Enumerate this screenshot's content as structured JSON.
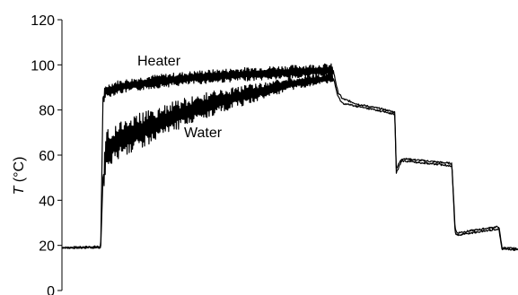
{
  "chart_data": {
    "type": "line",
    "title": "",
    "xlabel": "",
    "ylabel": {
      "var": "T",
      "unit": " (°C)"
    },
    "x_range": [
      0,
      100
    ],
    "ylim": [
      0,
      120
    ],
    "yticks": [
      0,
      20,
      40,
      60,
      80,
      100,
      120
    ],
    "grid": false,
    "legend": "none",
    "series": [
      {
        "name": "Heater",
        "color": "#000000",
        "noise_amplitude": 3,
        "points": [
          [
            0,
            19
          ],
          [
            8.5,
            19.5
          ],
          [
            9.0,
            85
          ],
          [
            9.5,
            88
          ],
          [
            12,
            90
          ],
          [
            20,
            92.5
          ],
          [
            30,
            94.5
          ],
          [
            40,
            95.8
          ],
          [
            50,
            96.8
          ],
          [
            58,
            97.5
          ],
          [
            59.5,
            97.5
          ],
          [
            60.5,
            88
          ],
          [
            61.5,
            85
          ],
          [
            65,
            82.5
          ],
          [
            70,
            80.5
          ],
          [
            73,
            79
          ],
          [
            73.3,
            54
          ],
          [
            74.5,
            58.5
          ],
          [
            77,
            58
          ],
          [
            82,
            57
          ],
          [
            85.5,
            56.3
          ],
          [
            86.2,
            28
          ],
          [
            86.6,
            25.5
          ],
          [
            88,
            26
          ],
          [
            94,
            27.8
          ],
          [
            95.8,
            28.3
          ],
          [
            96.5,
            19
          ],
          [
            100,
            18.5
          ]
        ]
      },
      {
        "name": "Water",
        "color": "#000000",
        "noise_amplitude": 9,
        "points": [
          [
            0,
            18.8
          ],
          [
            8.5,
            19
          ],
          [
            9.0,
            50
          ],
          [
            9.8,
            62
          ],
          [
            12,
            66
          ],
          [
            16,
            70
          ],
          [
            20,
            73
          ],
          [
            25,
            77.5
          ],
          [
            30,
            81
          ],
          [
            35,
            84
          ],
          [
            40,
            86.5
          ],
          [
            45,
            89
          ],
          [
            50,
            91.5
          ],
          [
            55,
            93
          ],
          [
            58,
            94
          ],
          [
            59.5,
            94.3
          ],
          [
            60.5,
            86
          ],
          [
            61.5,
            83
          ],
          [
            65,
            81.5
          ],
          [
            70,
            79.5
          ],
          [
            73,
            78
          ],
          [
            73.3,
            52
          ],
          [
            74.5,
            57.5
          ],
          [
            77,
            57
          ],
          [
            82,
            56
          ],
          [
            85.5,
            55.3
          ],
          [
            86.2,
            26
          ],
          [
            86.6,
            24.5
          ],
          [
            88,
            25
          ],
          [
            94,
            26.8
          ],
          [
            95.8,
            27.3
          ],
          [
            96.5,
            18.5
          ],
          [
            100,
            18
          ]
        ]
      }
    ]
  }
}
